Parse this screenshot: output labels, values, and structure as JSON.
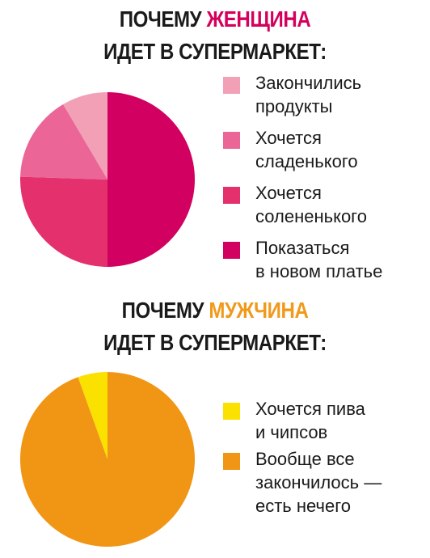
{
  "women": {
    "title_prefix": "ПОЧЕМУ ",
    "title_highlight": "ЖЕНЩИНА",
    "title_line2": "ИДЕТ В СУПЕРМАРКЕТ:",
    "highlight_color": "#d4005c"
  },
  "men": {
    "title_prefix": "ПОЧЕМУ ",
    "title_highlight": "МУЖЧИНА",
    "title_line2": "ИДЕТ В СУПЕРМАРКЕТ:",
    "highlight_color": "#f09a1c"
  },
  "chart_data": [
    {
      "type": "pie",
      "title": "ПОЧЕМУ ЖЕНЩИНА ИДЕТ В СУПЕРМАРКЕТ:",
      "categories": [
        "Закончились\nпродукты",
        "Хочется\nсладенького",
        "Хочется\nсолененького",
        "Показаться\nв новом платье"
      ],
      "values": [
        8.5,
        16,
        25.5,
        50
      ],
      "colors": [
        "#f2a0b6",
        "#eb6596",
        "#e4306c",
        "#d20060"
      ],
      "legend": "right",
      "start": "top",
      "direction": "counterclockwise"
    },
    {
      "type": "pie",
      "title": "ПОЧЕМУ МУЖЧИНА ИДЕТ В СУПЕРМАРКЕТ:",
      "categories": [
        "Хочется пива\nи чипсов",
        "Вообще все\nзакончилось —\nесть нечего"
      ],
      "values": [
        5.5,
        94.5
      ],
      "colors": [
        "#fae100",
        "#f09614"
      ],
      "legend": "right",
      "start": "top",
      "direction": "counterclockwise"
    }
  ]
}
